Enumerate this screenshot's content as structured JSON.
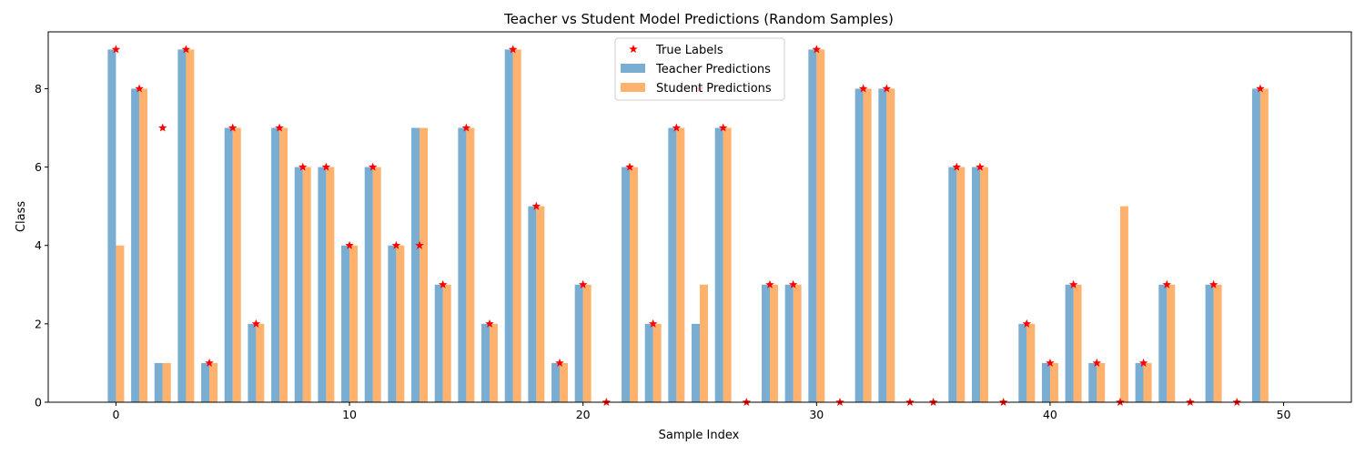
{
  "chart_data": {
    "type": "bar",
    "title": "Teacher vs Student Model Predictions (Random Samples)",
    "xlabel": "Sample Index",
    "ylabel": "Class",
    "xlim": [
      -2.9,
      52.9
    ],
    "ylim": [
      0,
      9.45
    ],
    "xticks": [
      0,
      10,
      20,
      30,
      40,
      50
    ],
    "yticks": [
      0,
      2,
      4,
      6,
      8
    ],
    "grid": false,
    "legend_position": "top-center",
    "x": [
      0,
      1,
      2,
      3,
      4,
      5,
      6,
      7,
      8,
      9,
      10,
      11,
      12,
      13,
      14,
      15,
      16,
      17,
      18,
      19,
      20,
      21,
      22,
      23,
      24,
      25,
      26,
      27,
      28,
      29,
      30,
      31,
      32,
      33,
      34,
      35,
      36,
      37,
      38,
      39,
      40,
      41,
      42,
      43,
      44,
      45,
      46,
      47,
      48,
      49
    ],
    "series": [
      {
        "name": "True Labels",
        "kind": "marker",
        "color": "#ff0000",
        "values": [
          9,
          8,
          7,
          9,
          1,
          7,
          2,
          7,
          6,
          6,
          4,
          6,
          4,
          4,
          3,
          7,
          2,
          9,
          5,
          1,
          3,
          0,
          6,
          2,
          7,
          8,
          7,
          0,
          3,
          3,
          9,
          0,
          8,
          8,
          0,
          0,
          6,
          6,
          0,
          2,
          1,
          3,
          1,
          0,
          1,
          3,
          0,
          3,
          0,
          8
        ]
      },
      {
        "name": "Teacher Predictions",
        "kind": "bar",
        "color": "#1f77b4",
        "values": [
          9,
          8,
          1,
          9,
          1,
          7,
          2,
          7,
          6,
          6,
          4,
          6,
          4,
          7,
          3,
          7,
          2,
          9,
          5,
          1,
          3,
          0,
          6,
          2,
          7,
          2,
          7,
          0,
          3,
          3,
          9,
          0,
          8,
          8,
          0,
          0,
          6,
          6,
          0,
          2,
          1,
          3,
          1,
          0,
          1,
          3,
          0,
          3,
          0,
          8
        ]
      },
      {
        "name": "Student Predictions",
        "kind": "bar",
        "color": "#ff7f0e",
        "values": [
          4,
          8,
          1,
          9,
          1,
          7,
          2,
          7,
          6,
          6,
          4,
          6,
          4,
          7,
          3,
          7,
          2,
          9,
          5,
          1,
          3,
          0,
          6,
          2,
          7,
          3,
          7,
          0,
          3,
          3,
          9,
          0,
          8,
          8,
          0,
          0,
          6,
          6,
          0,
          2,
          1,
          3,
          1,
          5,
          1,
          3,
          0,
          3,
          0,
          8
        ]
      }
    ]
  }
}
